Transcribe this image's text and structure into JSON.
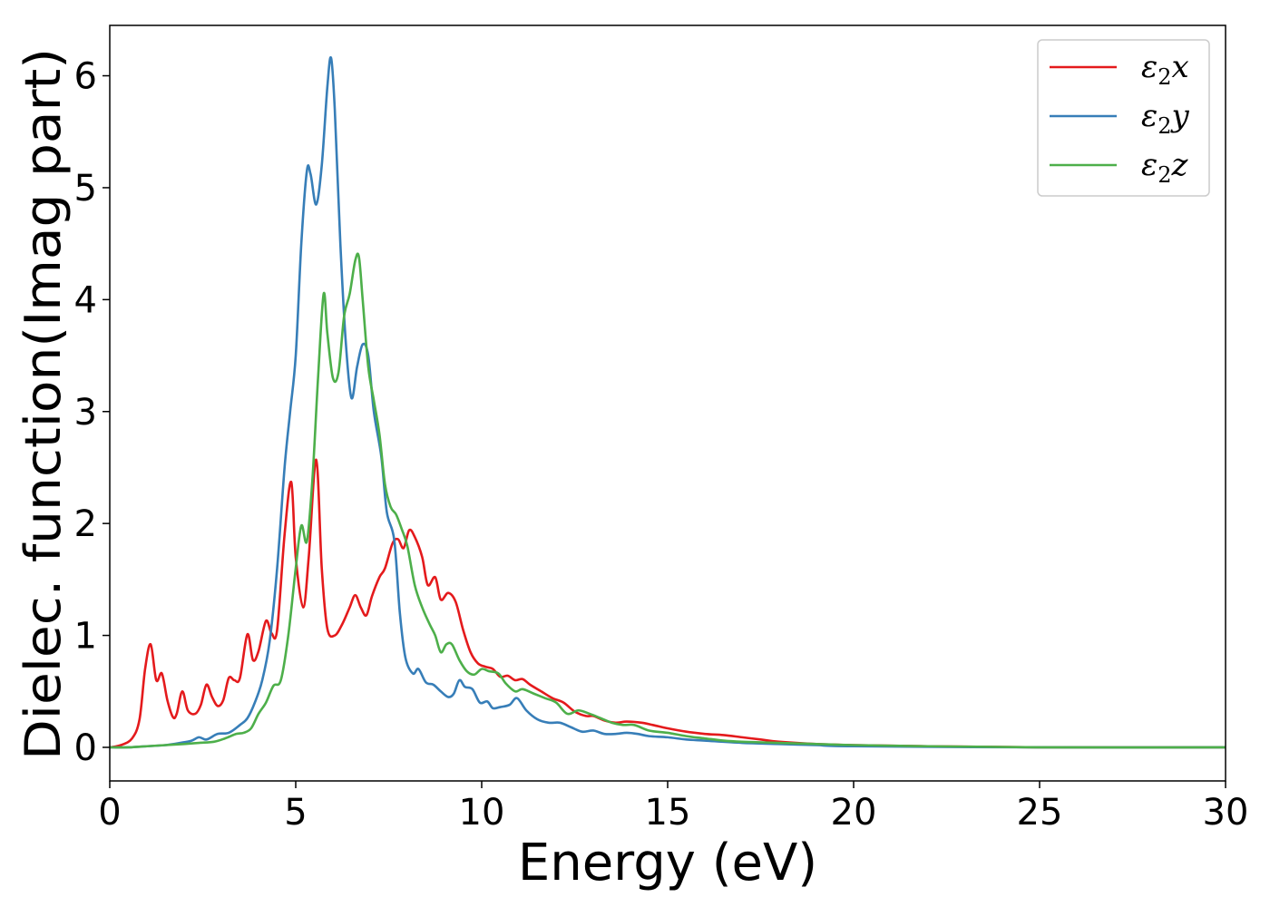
{
  "chart_data": {
    "type": "line",
    "xlabel": "Energy (eV)",
    "ylabel": "Dielec. function(Imag part)",
    "xlim": [
      0,
      30
    ],
    "ylim": [
      -0.3,
      6.45
    ],
    "xticks": [
      0,
      5,
      10,
      15,
      20,
      25,
      30
    ],
    "yticks": [
      0,
      1,
      2,
      3,
      4,
      5,
      6
    ],
    "xtick_labels": [
      "0",
      "5",
      "10",
      "15",
      "20",
      "25",
      "30"
    ],
    "ytick_labels": [
      "0",
      "1",
      "2",
      "3",
      "4",
      "5",
      "6"
    ],
    "grid": false,
    "legend_position": "top-right",
    "series": [
      {
        "name": "ε2x",
        "legend_base": "ε",
        "legend_sub": "2",
        "legend_suffix": "x",
        "color": "#e41a1c",
        "points": [
          [
            0.0,
            0.0
          ],
          [
            0.3,
            0.02
          ],
          [
            0.6,
            0.08
          ],
          [
            0.8,
            0.25
          ],
          [
            0.95,
            0.7
          ],
          [
            1.1,
            0.92
          ],
          [
            1.25,
            0.6
          ],
          [
            1.4,
            0.66
          ],
          [
            1.55,
            0.42
          ],
          [
            1.7,
            0.27
          ],
          [
            1.8,
            0.3
          ],
          [
            1.95,
            0.5
          ],
          [
            2.1,
            0.33
          ],
          [
            2.3,
            0.3
          ],
          [
            2.45,
            0.38
          ],
          [
            2.6,
            0.56
          ],
          [
            2.75,
            0.45
          ],
          [
            2.9,
            0.37
          ],
          [
            3.05,
            0.42
          ],
          [
            3.2,
            0.62
          ],
          [
            3.35,
            0.6
          ],
          [
            3.5,
            0.62
          ],
          [
            3.7,
            1.01
          ],
          [
            3.85,
            0.78
          ],
          [
            4.0,
            0.86
          ],
          [
            4.2,
            1.13
          ],
          [
            4.35,
            1.02
          ],
          [
            4.5,
            1.05
          ],
          [
            4.7,
            1.9
          ],
          [
            4.88,
            2.37
          ],
          [
            5.0,
            1.7
          ],
          [
            5.2,
            1.25
          ],
          [
            5.35,
            1.7
          ],
          [
            5.55,
            2.57
          ],
          [
            5.7,
            1.6
          ],
          [
            5.85,
            1.06
          ],
          [
            6.05,
            1.0
          ],
          [
            6.25,
            1.1
          ],
          [
            6.45,
            1.25
          ],
          [
            6.6,
            1.36
          ],
          [
            6.75,
            1.25
          ],
          [
            6.9,
            1.18
          ],
          [
            7.05,
            1.35
          ],
          [
            7.25,
            1.52
          ],
          [
            7.4,
            1.6
          ],
          [
            7.6,
            1.82
          ],
          [
            7.75,
            1.86
          ],
          [
            7.9,
            1.78
          ],
          [
            8.05,
            1.94
          ],
          [
            8.2,
            1.88
          ],
          [
            8.4,
            1.7
          ],
          [
            8.55,
            1.45
          ],
          [
            8.75,
            1.52
          ],
          [
            8.9,
            1.32
          ],
          [
            9.1,
            1.38
          ],
          [
            9.3,
            1.3
          ],
          [
            9.5,
            1.05
          ],
          [
            9.7,
            0.85
          ],
          [
            9.9,
            0.75
          ],
          [
            10.1,
            0.72
          ],
          [
            10.3,
            0.7
          ],
          [
            10.5,
            0.63
          ],
          [
            10.7,
            0.64
          ],
          [
            10.9,
            0.6
          ],
          [
            11.1,
            0.61
          ],
          [
            11.3,
            0.56
          ],
          [
            11.6,
            0.5
          ],
          [
            11.9,
            0.44
          ],
          [
            12.2,
            0.4
          ],
          [
            12.5,
            0.32
          ],
          [
            12.8,
            0.28
          ],
          [
            13.0,
            0.28
          ],
          [
            13.3,
            0.24
          ],
          [
            13.6,
            0.22
          ],
          [
            13.9,
            0.23
          ],
          [
            14.3,
            0.22
          ],
          [
            14.6,
            0.2
          ],
          [
            15.0,
            0.17
          ],
          [
            15.5,
            0.14
          ],
          [
            16.0,
            0.12
          ],
          [
            16.5,
            0.11
          ],
          [
            17.0,
            0.09
          ],
          [
            17.5,
            0.07
          ],
          [
            18.0,
            0.05
          ],
          [
            19.0,
            0.03
          ],
          [
            20.0,
            0.02
          ],
          [
            22.0,
            0.01
          ],
          [
            25.0,
            0.0
          ],
          [
            30.0,
            0.0
          ]
        ]
      },
      {
        "name": "ε2y",
        "legend_base": "ε",
        "legend_sub": "2",
        "legend_suffix": "y",
        "color": "#377eb8",
        "points": [
          [
            0.0,
            0.0
          ],
          [
            0.5,
            0.0
          ],
          [
            1.0,
            0.01
          ],
          [
            1.5,
            0.02
          ],
          [
            1.9,
            0.04
          ],
          [
            2.2,
            0.06
          ],
          [
            2.4,
            0.09
          ],
          [
            2.6,
            0.07
          ],
          [
            2.9,
            0.12
          ],
          [
            3.2,
            0.13
          ],
          [
            3.5,
            0.2
          ],
          [
            3.7,
            0.26
          ],
          [
            3.9,
            0.4
          ],
          [
            4.1,
            0.6
          ],
          [
            4.3,
            0.95
          ],
          [
            4.5,
            1.6
          ],
          [
            4.7,
            2.5
          ],
          [
            4.85,
            3.0
          ],
          [
            5.0,
            3.5
          ],
          [
            5.15,
            4.5
          ],
          [
            5.3,
            5.15
          ],
          [
            5.4,
            5.12
          ],
          [
            5.55,
            4.85
          ],
          [
            5.7,
            5.2
          ],
          [
            5.85,
            5.9
          ],
          [
            5.95,
            6.16
          ],
          [
            6.05,
            5.7
          ],
          [
            6.2,
            4.5
          ],
          [
            6.35,
            3.6
          ],
          [
            6.5,
            3.12
          ],
          [
            6.65,
            3.4
          ],
          [
            6.8,
            3.6
          ],
          [
            6.95,
            3.5
          ],
          [
            7.1,
            3.0
          ],
          [
            7.3,
            2.6
          ],
          [
            7.45,
            2.1
          ],
          [
            7.65,
            1.85
          ],
          [
            7.8,
            1.2
          ],
          [
            7.95,
            0.8
          ],
          [
            8.15,
            0.66
          ],
          [
            8.3,
            0.7
          ],
          [
            8.5,
            0.58
          ],
          [
            8.7,
            0.56
          ],
          [
            8.9,
            0.5
          ],
          [
            9.1,
            0.45
          ],
          [
            9.25,
            0.48
          ],
          [
            9.4,
            0.6
          ],
          [
            9.55,
            0.54
          ],
          [
            9.75,
            0.52
          ],
          [
            9.95,
            0.4
          ],
          [
            10.15,
            0.41
          ],
          [
            10.3,
            0.35
          ],
          [
            10.5,
            0.36
          ],
          [
            10.75,
            0.38
          ],
          [
            10.95,
            0.44
          ],
          [
            11.2,
            0.33
          ],
          [
            11.5,
            0.25
          ],
          [
            11.8,
            0.22
          ],
          [
            12.1,
            0.22
          ],
          [
            12.4,
            0.18
          ],
          [
            12.7,
            0.14
          ],
          [
            13.0,
            0.15
          ],
          [
            13.3,
            0.12
          ],
          [
            13.6,
            0.12
          ],
          [
            13.9,
            0.13
          ],
          [
            14.2,
            0.12
          ],
          [
            14.5,
            0.1
          ],
          [
            15.0,
            0.09
          ],
          [
            15.5,
            0.07
          ],
          [
            16.0,
            0.06
          ],
          [
            17.0,
            0.04
          ],
          [
            18.0,
            0.03
          ],
          [
            19.0,
            0.02
          ],
          [
            20.0,
            0.01
          ],
          [
            25.0,
            0.0
          ],
          [
            30.0,
            0.0
          ]
        ]
      },
      {
        "name": "ε2z",
        "legend_base": "ε",
        "legend_sub": "2",
        "legend_suffix": "z",
        "color": "#4daf4a",
        "points": [
          [
            0.0,
            0.0
          ],
          [
            0.5,
            0.0
          ],
          [
            1.0,
            0.01
          ],
          [
            1.5,
            0.02
          ],
          [
            2.0,
            0.03
          ],
          [
            2.4,
            0.04
          ],
          [
            2.8,
            0.05
          ],
          [
            3.1,
            0.08
          ],
          [
            3.4,
            0.12
          ],
          [
            3.6,
            0.13
          ],
          [
            3.8,
            0.17
          ],
          [
            4.0,
            0.3
          ],
          [
            4.2,
            0.4
          ],
          [
            4.4,
            0.55
          ],
          [
            4.6,
            0.6
          ],
          [
            4.8,
            1.0
          ],
          [
            5.0,
            1.6
          ],
          [
            5.15,
            1.98
          ],
          [
            5.3,
            1.84
          ],
          [
            5.45,
            2.4
          ],
          [
            5.6,
            3.3
          ],
          [
            5.75,
            4.05
          ],
          [
            5.85,
            3.7
          ],
          [
            6.0,
            3.3
          ],
          [
            6.15,
            3.35
          ],
          [
            6.3,
            3.85
          ],
          [
            6.45,
            4.05
          ],
          [
            6.6,
            4.35
          ],
          [
            6.7,
            4.38
          ],
          [
            6.8,
            4.0
          ],
          [
            6.95,
            3.4
          ],
          [
            7.1,
            3.1
          ],
          [
            7.25,
            2.8
          ],
          [
            7.4,
            2.35
          ],
          [
            7.55,
            2.15
          ],
          [
            7.7,
            2.08
          ],
          [
            7.85,
            1.95
          ],
          [
            8.0,
            1.8
          ],
          [
            8.2,
            1.45
          ],
          [
            8.4,
            1.25
          ],
          [
            8.6,
            1.1
          ],
          [
            8.75,
            1.0
          ],
          [
            8.9,
            0.85
          ],
          [
            9.05,
            0.92
          ],
          [
            9.2,
            0.92
          ],
          [
            9.4,
            0.78
          ],
          [
            9.6,
            0.68
          ],
          [
            9.8,
            0.65
          ],
          [
            10.0,
            0.7
          ],
          [
            10.2,
            0.68
          ],
          [
            10.45,
            0.66
          ],
          [
            10.65,
            0.57
          ],
          [
            10.9,
            0.5
          ],
          [
            11.1,
            0.52
          ],
          [
            11.4,
            0.48
          ],
          [
            11.7,
            0.44
          ],
          [
            12.0,
            0.4
          ],
          [
            12.3,
            0.3
          ],
          [
            12.6,
            0.33
          ],
          [
            12.9,
            0.3
          ],
          [
            13.2,
            0.26
          ],
          [
            13.5,
            0.22
          ],
          [
            13.8,
            0.2
          ],
          [
            14.1,
            0.2
          ],
          [
            14.5,
            0.15
          ],
          [
            15.0,
            0.13
          ],
          [
            15.5,
            0.1
          ],
          [
            16.0,
            0.08
          ],
          [
            16.5,
            0.06
          ],
          [
            17.0,
            0.05
          ],
          [
            18.0,
            0.04
          ],
          [
            19.0,
            0.03
          ],
          [
            20.0,
            0.02
          ],
          [
            22.0,
            0.01
          ],
          [
            25.0,
            0.0
          ],
          [
            30.0,
            0.0
          ]
        ]
      }
    ]
  }
}
